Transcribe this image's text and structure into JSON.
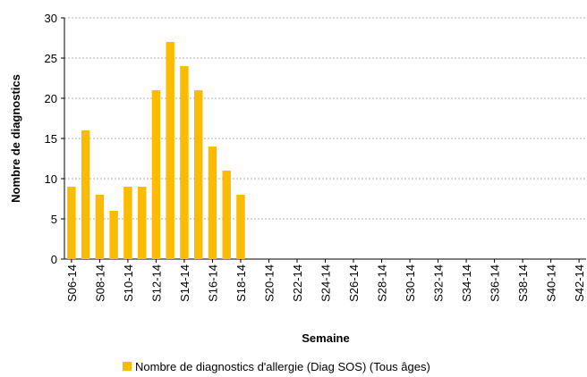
{
  "chart_data": {
    "type": "bar",
    "y_label": "Nombre de diagnostics",
    "x_label": "Semaine",
    "categories": [
      "S06-14",
      null,
      "S08-14",
      null,
      "S10-14",
      null,
      "S12-14",
      null,
      "S14-14",
      null,
      "S16-14",
      null,
      "S18-14",
      null,
      "S20-14",
      null,
      "S22-14",
      null,
      "S24-14",
      null,
      "S26-14",
      null,
      "S28-14",
      null,
      "S30-14",
      null,
      "S32-14",
      null,
      "S34-14",
      null,
      "S36-14",
      null,
      "S38-14",
      null,
      "S40-14",
      null,
      "S42-14"
    ],
    "series": [
      {
        "name": "Nombre de diagnostics d'allergie (Diag SOS) (Tous âges)",
        "color": "#fbbb00",
        "values": [
          9,
          16,
          8,
          6,
          9,
          9,
          21,
          27,
          24,
          21,
          14,
          11,
          8,
          null,
          null,
          null,
          null,
          null,
          null,
          null,
          null,
          null,
          null,
          null,
          null,
          null,
          null,
          null,
          null,
          null,
          null,
          null,
          null,
          null,
          null,
          null,
          null
        ]
      }
    ],
    "ylim": [
      0,
      30
    ],
    "yticks": [
      0,
      5,
      10,
      15,
      20,
      25,
      30
    ],
    "grid": true,
    "legend": "bottom"
  }
}
